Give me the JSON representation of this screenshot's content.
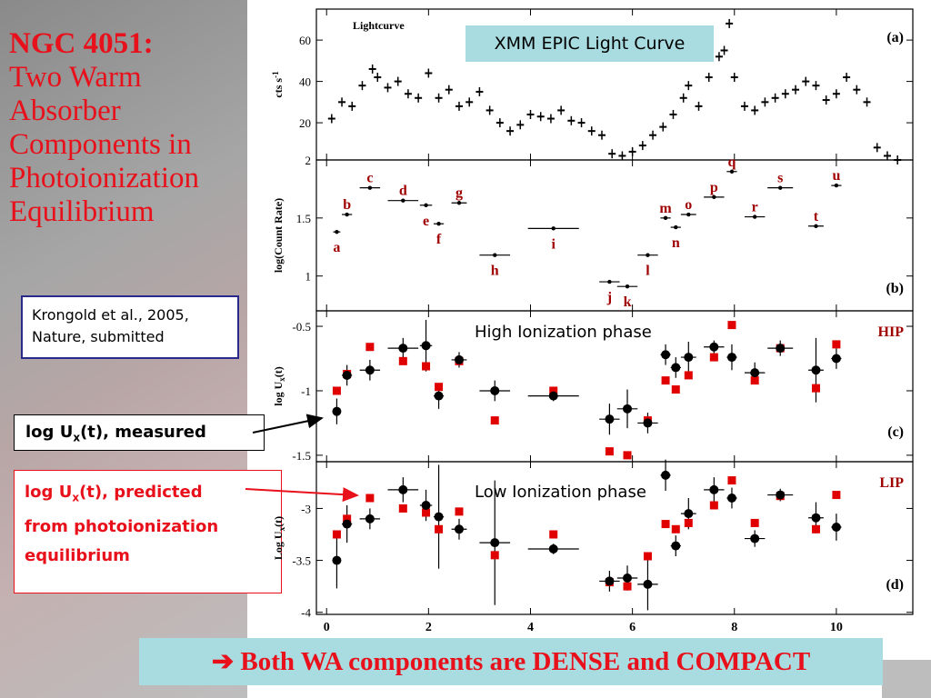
{
  "title": {
    "main": "NGC 4051:",
    "lines": [
      "Two Warm",
      "Absorber",
      "Components in",
      "Photoionization",
      "Equilibrium"
    ]
  },
  "reference": {
    "line1": "Krongold et al., 2005,",
    "line2": "Nature, submitted"
  },
  "measured_label": {
    "prefix": "log U",
    "sub": "x",
    "suffix": "(t), measured"
  },
  "predicted_label": {
    "prefix": "log U",
    "sub": "x",
    "suffix": "(t), predicted",
    "line2": "from photoionization",
    "line3": "equilibrium"
  },
  "lightcurve_label": "XMM EPIC Light Curve",
  "hip_label": "High Ionization phase",
  "lip_label": "Low Ionization phase",
  "banner": {
    "arrow": "➔",
    "text": "Both WA components are DENSE and COMPACT"
  },
  "colors": {
    "title": "#e8101a",
    "label_box": "#a9dce0",
    "model_marker": "#e00000",
    "measured_marker": "#000000",
    "letter": "#a00000"
  },
  "chart_data": [
    {
      "panel": "a",
      "type": "scatter",
      "title": "Lightcurve",
      "tag": "(a)",
      "ylabel": "cts s",
      "ylabel_sup": "-1",
      "ylim": [
        2,
        75
      ],
      "yticks": [
        2,
        20,
        40,
        60
      ],
      "xlim": [
        -0.2,
        11.5
      ],
      "x": [
        0.1,
        0.3,
        0.5,
        0.7,
        0.9,
        1.0,
        1.2,
        1.4,
        1.6,
        1.8,
        2.0,
        2.2,
        2.4,
        2.6,
        2.8,
        3.0,
        3.2,
        3.4,
        3.6,
        3.8,
        4.0,
        4.2,
        4.4,
        4.6,
        4.8,
        5.0,
        5.2,
        5.4,
        5.6,
        5.8,
        6.0,
        6.2,
        6.4,
        6.6,
        6.8,
        7.0,
        7.1,
        7.3,
        7.5,
        7.7,
        7.8,
        7.9,
        8.0,
        8.2,
        8.4,
        8.6,
        8.8,
        9.0,
        9.2,
        9.4,
        9.6,
        9.8,
        10.0,
        10.2,
        10.4,
        10.6,
        10.8,
        11.0,
        11.2
      ],
      "y": [
        22,
        30,
        28,
        38,
        46,
        42,
        37,
        40,
        34,
        32,
        44,
        32,
        36,
        28,
        30,
        35,
        26,
        20,
        16,
        19,
        24,
        23,
        22,
        26,
        21,
        20,
        16,
        14,
        5,
        4,
        6,
        9,
        14,
        18,
        24,
        32,
        38,
        28,
        42,
        52,
        55,
        68,
        42,
        28,
        26,
        30,
        32,
        34,
        36,
        40,
        38,
        31,
        34,
        42,
        36,
        30,
        8,
        4,
        2
      ]
    },
    {
      "panel": "b",
      "type": "scatter",
      "tag": "(b)",
      "ylabel": "log(Count Rate)",
      "ylim": [
        0.7,
        2.0
      ],
      "yticks": [
        1,
        1.5
      ],
      "xlim": [
        -0.2,
        11.5
      ],
      "points": [
        {
          "label": "a",
          "x": 0.2,
          "y": 1.38,
          "xerr": 0.07
        },
        {
          "label": "b",
          "x": 0.4,
          "y": 1.53,
          "xerr": 0.1
        },
        {
          "label": "c",
          "x": 0.85,
          "y": 1.76,
          "xerr": 0.2
        },
        {
          "label": "d",
          "x": 1.5,
          "y": 1.65,
          "xerr": 0.3
        },
        {
          "label": "e",
          "x": 1.95,
          "y": 1.61,
          "xerr": 0.12
        },
        {
          "label": "f",
          "x": 2.2,
          "y": 1.45,
          "xerr": 0.1
        },
        {
          "label": "g",
          "x": 2.6,
          "y": 1.63,
          "xerr": 0.15
        },
        {
          "label": "h",
          "x": 3.3,
          "y": 1.18,
          "xerr": 0.3
        },
        {
          "label": "i",
          "x": 4.45,
          "y": 1.41,
          "xerr": 0.5
        },
        {
          "label": "j",
          "x": 5.55,
          "y": 0.95,
          "xerr": 0.2
        },
        {
          "label": "k",
          "x": 5.9,
          "y": 0.91,
          "xerr": 0.2
        },
        {
          "label": "l",
          "x": 6.3,
          "y": 1.18,
          "xerr": 0.2
        },
        {
          "label": "m",
          "x": 6.65,
          "y": 1.5,
          "xerr": 0.1
        },
        {
          "label": "n",
          "x": 6.85,
          "y": 1.42,
          "xerr": 0.1
        },
        {
          "label": "o",
          "x": 7.1,
          "y": 1.53,
          "xerr": 0.15
        },
        {
          "label": "p",
          "x": 7.6,
          "y": 1.68,
          "xerr": 0.2
        },
        {
          "label": "q",
          "x": 7.95,
          "y": 1.9,
          "xerr": 0.1
        },
        {
          "label": "r",
          "x": 8.4,
          "y": 1.51,
          "xerr": 0.2
        },
        {
          "label": "s",
          "x": 8.9,
          "y": 1.76,
          "xerr": 0.25
        },
        {
          "label": "t",
          "x": 9.6,
          "y": 1.43,
          "xerr": 0.15
        },
        {
          "label": "u",
          "x": 10.0,
          "y": 1.78,
          "xerr": 0.1
        }
      ]
    },
    {
      "panel": "c",
      "type": "scatter",
      "tag": "HIP",
      "tag2": "(c)",
      "ylabel": "log U",
      "ylabel_sub": "x",
      "ylabel_suffix": "(t)",
      "ylim": [
        -1.55,
        -0.38
      ],
      "yticks": [
        -0.5,
        -1,
        -1.5
      ],
      "xlim": [
        -0.2,
        11.5
      ],
      "series": [
        {
          "name": "measured",
          "x": [
            0.2,
            0.4,
            0.85,
            1.5,
            1.95,
            2.2,
            2.6,
            3.3,
            4.45,
            5.55,
            5.9,
            6.3,
            6.65,
            6.85,
            7.1,
            7.6,
            7.95,
            8.4,
            8.9,
            9.6,
            10.0
          ],
          "y": [
            -1.16,
            -0.88,
            -0.84,
            -0.67,
            -0.65,
            -1.04,
            -0.76,
            -1.0,
            -1.04,
            -1.22,
            -1.14,
            -1.25,
            -0.72,
            -0.82,
            -0.74,
            -0.66,
            -0.74,
            -0.86,
            -0.67,
            -0.84,
            -0.75
          ],
          "yerr": [
            0.1,
            0.08,
            0.08,
            0.08,
            0.2,
            0.1,
            0.06,
            0.08,
            0.04,
            0.12,
            0.15,
            0.08,
            0.08,
            0.08,
            0.12,
            0.05,
            0.1,
            0.08,
            0.06,
            0.25,
            0.08
          ],
          "xerr": [
            0.07,
            0.1,
            0.2,
            0.3,
            0.12,
            0.1,
            0.15,
            0.3,
            0.5,
            0.2,
            0.2,
            0.2,
            0.1,
            0.1,
            0.15,
            0.2,
            0.1,
            0.2,
            0.25,
            0.15,
            0.1
          ]
        },
        {
          "name": "predicted",
          "x": [
            0.2,
            0.4,
            0.85,
            1.5,
            1.95,
            2.2,
            2.6,
            3.3,
            4.45,
            5.55,
            5.9,
            6.3,
            6.65,
            6.85,
            7.1,
            7.6,
            7.95,
            8.4,
            8.9,
            9.6,
            10.0
          ],
          "y": [
            -1.0,
            -0.87,
            -0.66,
            -0.77,
            -0.81,
            -0.97,
            -0.77,
            -1.23,
            -1.0,
            -1.47,
            -1.5,
            -1.23,
            -0.92,
            -0.99,
            -0.88,
            -0.74,
            -0.49,
            -0.92,
            -0.67,
            -0.98,
            -0.64
          ]
        }
      ]
    },
    {
      "panel": "d",
      "type": "scatter",
      "tag": "LIP",
      "tag2": "(d)",
      "ylabel": "Log U",
      "ylabel_sub": "x",
      "ylabel_suffix": "(t)",
      "ylim": [
        -4.02,
        -2.55
      ],
      "yticks": [
        -3,
        -3.5,
        -4
      ],
      "xlim": [
        -0.2,
        11.5
      ],
      "series": [
        {
          "name": "measured",
          "x": [
            0.2,
            0.4,
            0.85,
            1.5,
            1.95,
            2.2,
            2.6,
            3.3,
            4.45,
            5.55,
            5.9,
            6.3,
            6.65,
            6.85,
            7.1,
            7.6,
            7.95,
            8.4,
            8.9,
            9.6,
            10.0
          ],
          "y": [
            -3.5,
            -3.15,
            -3.1,
            -2.82,
            -2.97,
            -3.08,
            -3.2,
            -3.33,
            -3.39,
            -3.7,
            -3.67,
            -3.73,
            -2.68,
            -3.36,
            -3.05,
            -2.82,
            -2.9,
            -3.29,
            -2.87,
            -3.09,
            -3.18
          ],
          "yerr": [
            0.27,
            0.18,
            0.1,
            0.12,
            0.15,
            0.5,
            0.1,
            0.6,
            0.05,
            0.1,
            0.12,
            0.25,
            0.15,
            0.1,
            0.15,
            0.12,
            0.1,
            0.08,
            0.06,
            0.15,
            0.13
          ],
          "xerr": [
            0.07,
            0.1,
            0.2,
            0.3,
            0.12,
            0.1,
            0.15,
            0.3,
            0.5,
            0.2,
            0.2,
            0.2,
            0.1,
            0.1,
            0.15,
            0.2,
            0.1,
            0.2,
            0.25,
            0.15,
            0.1
          ]
        },
        {
          "name": "predicted",
          "x": [
            0.2,
            0.4,
            0.85,
            1.5,
            1.95,
            2.2,
            2.6,
            3.3,
            4.45,
            5.55,
            5.9,
            6.3,
            6.65,
            6.85,
            7.1,
            7.6,
            7.95,
            8.4,
            8.9,
            9.6,
            10.0
          ],
          "y": [
            -3.25,
            -3.1,
            -2.9,
            -3.0,
            -3.04,
            -3.2,
            -3.03,
            -3.45,
            -3.25,
            -3.71,
            -3.75,
            -3.46,
            -3.15,
            -3.2,
            -3.14,
            -2.97,
            -2.73,
            -3.14,
            -2.88,
            -3.2,
            -2.87
          ]
        }
      ]
    }
  ],
  "x_axis": {
    "ticks": [
      0,
      2,
      4,
      6,
      8,
      10
    ]
  }
}
